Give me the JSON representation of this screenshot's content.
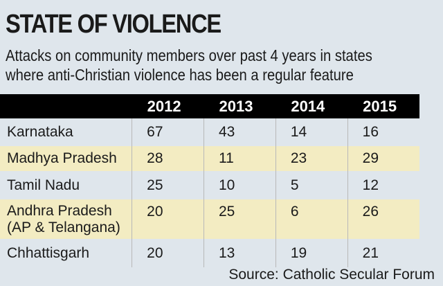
{
  "title": "STATE OF VIOLENCE",
  "subtitle_lines": [
    "Attacks on community members over past 4 years in states",
    "where anti-Christian violence has been a regular feature"
  ],
  "source": "Source: Catholic Secular Forum",
  "colors": {
    "header_bg": "#000000",
    "header_text": "#ffffff",
    "shaded_row": "#f3ecc2",
    "page_bg": "#dfe6ec"
  },
  "chart_data": {
    "type": "table",
    "columns": [
      "",
      "2012",
      "2013",
      "2014",
      "2015"
    ],
    "rows": [
      {
        "state": "Karnataka",
        "values": [
          "67",
          "43",
          "14",
          "16"
        ]
      },
      {
        "state": "Madhya Pradesh",
        "values": [
          "28",
          "11",
          "23",
          "29"
        ]
      },
      {
        "state": "Tamil Nadu",
        "values": [
          "25",
          "10",
          "5",
          "12"
        ]
      },
      {
        "state": "Andhra Pradesh\n(AP & Telangana)",
        "values": [
          "20",
          "25",
          "6",
          "26"
        ]
      },
      {
        "state": "Chhattisgarh",
        "values": [
          "20",
          "13",
          "19",
          "21"
        ]
      }
    ]
  }
}
